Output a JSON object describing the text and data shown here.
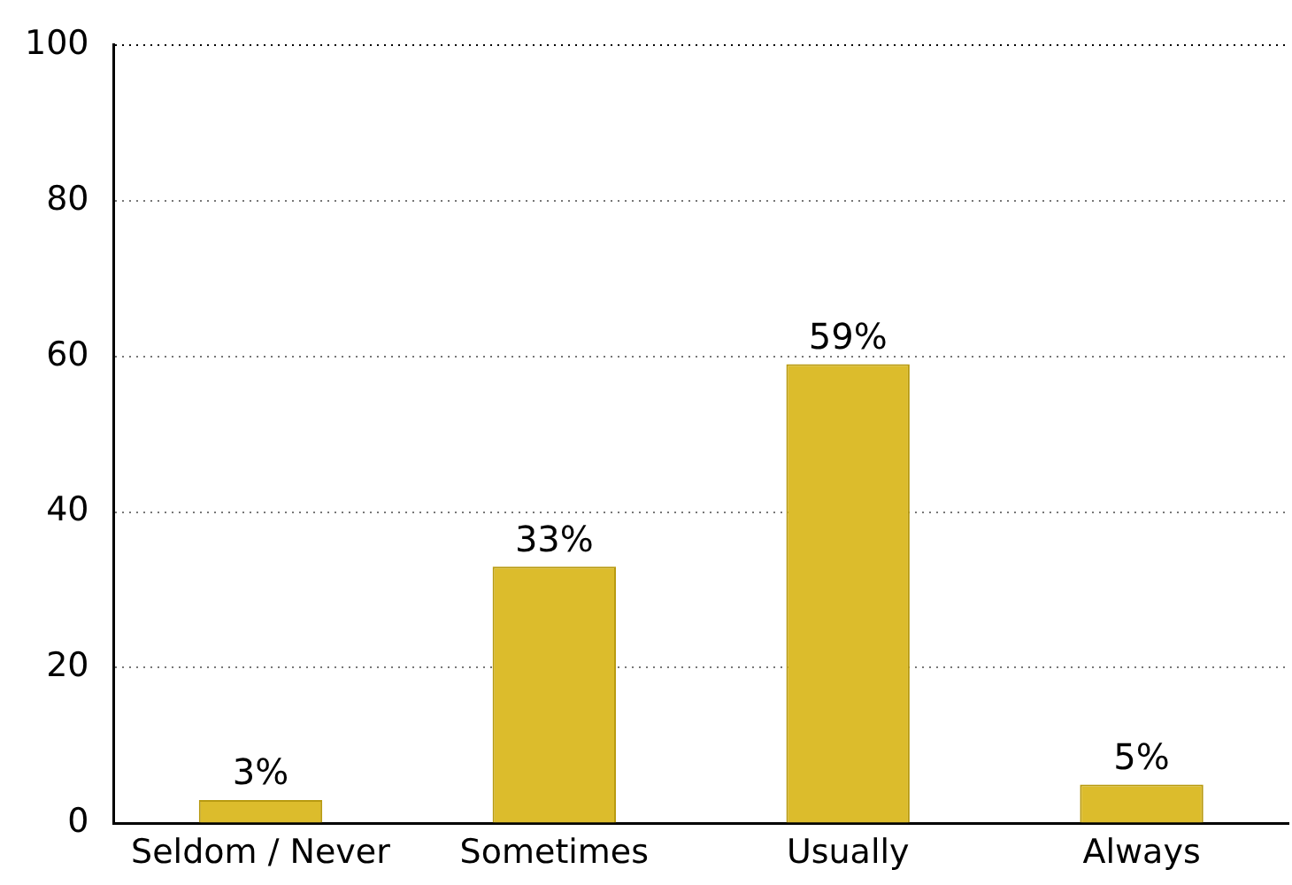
{
  "chart_data": {
    "type": "bar",
    "categories": [
      "Seldom / Never",
      "Sometimes",
      "Usually",
      "Always"
    ],
    "values": [
      3,
      33,
      59,
      5
    ],
    "value_labels": [
      "3%",
      "33%",
      "59%",
      "5%"
    ],
    "color": "#dcbc2c",
    "ylim": [
      0,
      100
    ],
    "yticks": [
      0,
      20,
      40,
      60,
      80,
      100
    ],
    "grid": "y",
    "legend": false
  }
}
